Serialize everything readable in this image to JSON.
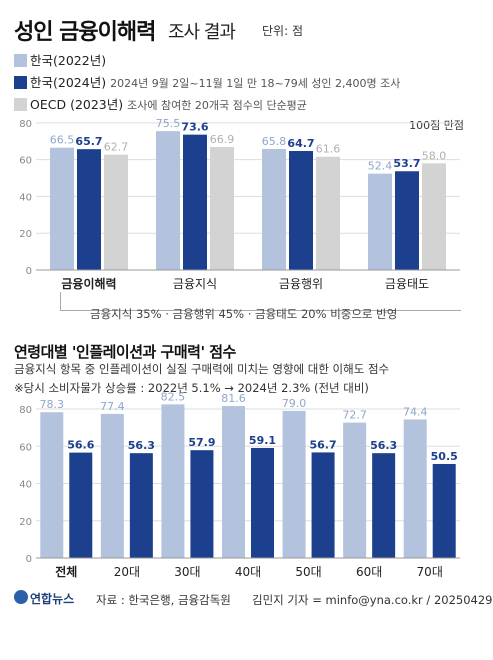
{
  "header": {
    "title": "성인 금융이해력",
    "subtitle": "조사 결과",
    "unit": "단위: 점"
  },
  "legend": [
    {
      "label": "한국(2022년)",
      "note": "",
      "color": "#b3c3de"
    },
    {
      "label": "한국(2024년)",
      "note": "2024년 9월 2일~11월 1일 만 18~79세 성인 2,400명 조사",
      "color": "#1c3f8e"
    },
    {
      "label": "OECD (2023년)",
      "note": "조사에 참여한 20개국 점수의 단순평균",
      "color": "#d3d3d3"
    }
  ],
  "max_note": "100점 만점",
  "weight_note": "금융지식 35% · 금융행위 45% · 금융태도 20% 비중으로 반영",
  "section2": {
    "title": "연령대별 '인플레이션과 구매력' 점수",
    "desc": "금융지식 항목 중 인플레이션이 실질 구매력에 미치는 영향에 대한 이해도 점수",
    "note": "※당시 소비자물가 상승률 : 2022년 5.1% → 2024년 2.3% (전년 대비)"
  },
  "footer": {
    "logo": "연합뉴스",
    "source": "자료 : 한국은행, 금융감독원",
    "credit": "김민지 기자 = minfo@yna.co.kr / 20250429"
  },
  "chart_data": [
    {
      "type": "bar",
      "categories": [
        "금융이해력",
        "금융지식",
        "금융행위",
        "금융태도"
      ],
      "series": [
        {
          "name": "한국(2022년)",
          "values": [
            66.5,
            75.5,
            65.8,
            52.4
          ],
          "color": "#b3c3de",
          "label_color": "#8fa6cc"
        },
        {
          "name": "한국(2024년)",
          "values": [
            65.7,
            73.6,
            64.7,
            53.7
          ],
          "color": "#1c3f8e",
          "label_color": "#1c3f8e"
        },
        {
          "name": "OECD (2023년)",
          "values": [
            62.7,
            66.9,
            61.6,
            58.0
          ],
          "color": "#d3d3d3",
          "label_color": "#b0b0b0"
        }
      ],
      "yticks": [
        0,
        20,
        40,
        60,
        80
      ],
      "ylim": [
        0,
        87
      ]
    },
    {
      "type": "bar",
      "categories": [
        "전체",
        "20대",
        "30대",
        "40대",
        "50대",
        "60대",
        "70대"
      ],
      "series": [
        {
          "name": "2022년",
          "values": [
            78.3,
            77.4,
            82.5,
            81.6,
            79.0,
            72.7,
            74.4
          ],
          "color": "#b3c3de",
          "label_color": "#8fa6cc"
        },
        {
          "name": "2024년",
          "values": [
            56.6,
            56.3,
            57.9,
            59.1,
            56.7,
            56.3,
            50.5
          ],
          "color": "#1c3f8e",
          "label_color": "#1c3f8e"
        }
      ],
      "yticks": [
        0,
        20,
        40,
        60,
        80
      ],
      "ylim": [
        0,
        87
      ]
    }
  ]
}
